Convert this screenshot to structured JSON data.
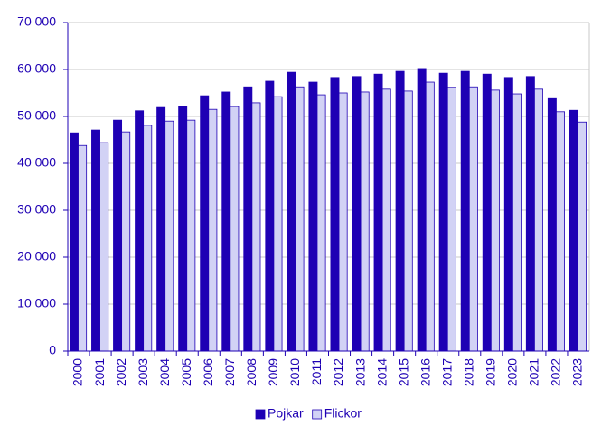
{
  "chart_data": {
    "type": "bar",
    "categories": [
      "2000",
      "2001",
      "2002",
      "2003",
      "2004",
      "2005",
      "2006",
      "2007",
      "2008",
      "2009",
      "2010",
      "2011",
      "2012",
      "2013",
      "2014",
      "2015",
      "2016",
      "2017",
      "2018",
      "2019",
      "2020",
      "2021",
      "2022",
      "2023"
    ],
    "series": [
      {
        "name": "Pojkar",
        "color": "#1e00b4",
        "values": [
          46500,
          47100,
          49200,
          51200,
          51900,
          52100,
          54400,
          55200,
          56300,
          57500,
          59400,
          57300,
          58300,
          58500,
          59000,
          59600,
          60200,
          59200,
          59600,
          59000,
          58300,
          58500,
          53800,
          51300
        ]
      },
      {
        "name": "Flickor",
        "color": "#d2d2f5",
        "values": [
          43800,
          44400,
          46700,
          48100,
          49000,
          49200,
          51500,
          52100,
          52900,
          54200,
          56300,
          54600,
          55000,
          55200,
          55800,
          55400,
          57300,
          56200,
          56300,
          55600,
          54800,
          55800,
          51000,
          48800
        ]
      }
    ],
    "ylim": [
      0,
      70000
    ],
    "yticks": [
      0,
      {
        "value": 10000,
        "label": "10 000"
      },
      {
        "value": 20000,
        "label": "20 000"
      },
      {
        "value": 30000,
        "label": "30 000"
      },
      {
        "value": 40000,
        "label": "40 000"
      },
      {
        "value": 50000,
        "label": "50 000"
      },
      {
        "value": 60000,
        "label": "60 000"
      },
      {
        "value": 70000,
        "label": "70 000"
      }
    ],
    "grid": true,
    "legend": "bottom"
  }
}
